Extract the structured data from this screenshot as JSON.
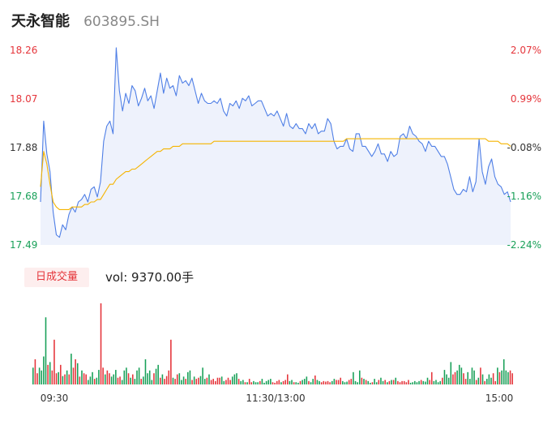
{
  "header": {
    "name": "天永智能",
    "code": "603895.SH"
  },
  "volume_panel": {
    "tab_label": "日成交量",
    "vol_label": "vol: 9370.00手"
  },
  "colors": {
    "up": "#e5353b",
    "down": "#18a058",
    "price_line": "#4f7fe6",
    "avg_line": "#f5b400",
    "area_fill": "#eef2fc",
    "axis_text": "#333333"
  },
  "chart_data": [
    {
      "type": "line",
      "title": "",
      "y_left_ticks": [
        "18.26",
        "18.07",
        "17.88",
        "17.68",
        "17.49"
      ],
      "y_right_ticks": [
        "2.07%",
        "0.99%",
        "-0.08%",
        "-1.16%",
        "-2.24%"
      ],
      "ylim": [
        17.49,
        18.26
      ],
      "x_ticks": [
        "09:30",
        "11:30/13:00",
        "15:00"
      ],
      "series": [
        {
          "values": [
            17.66,
            17.98,
            17.85,
            17.78,
            17.62,
            17.53,
            17.52,
            17.57,
            17.55,
            17.61,
            17.64,
            17.62,
            17.66,
            17.67,
            17.69,
            17.66,
            17.71,
            17.72,
            17.68,
            17.74,
            17.9,
            17.96,
            17.98,
            17.93,
            18.27,
            18.1,
            18.02,
            18.09,
            18.05,
            18.12,
            18.1,
            18.04,
            18.07,
            18.11,
            18.06,
            18.08,
            18.03,
            18.1,
            18.17,
            18.09,
            18.15,
            18.11,
            18.12,
            18.08,
            18.16,
            18.13,
            18.14,
            18.12,
            18.15,
            18.1,
            18.05,
            18.09,
            18.06,
            18.05,
            18.05,
            18.06,
            18.05,
            18.07,
            18.02,
            18.0,
            18.05,
            18.04,
            18.06,
            18.03,
            18.07,
            18.06,
            18.08,
            18.04,
            18.05,
            18.06,
            18.06,
            18.03,
            18.0,
            18.01,
            18.0,
            18.02,
            17.99,
            17.96,
            18.01,
            17.96,
            17.95,
            17.97,
            17.95,
            17.95,
            17.93,
            17.97,
            17.95,
            17.97,
            17.93,
            17.94,
            17.94,
            17.99,
            17.97,
            17.9,
            17.87,
            17.88,
            17.88,
            17.91,
            17.87,
            17.86,
            17.93,
            17.93,
            17.88,
            17.88,
            17.86,
            17.84,
            17.86,
            17.89,
            17.85,
            17.85,
            17.82,
            17.86,
            17.84,
            17.85,
            17.92,
            17.93,
            17.91,
            17.96,
            17.93,
            17.92,
            17.9,
            17.89,
            17.86,
            17.9,
            17.88,
            17.88,
            17.86,
            17.84,
            17.84,
            17.81,
            17.76,
            17.71,
            17.69,
            17.69,
            17.71,
            17.7,
            17.76,
            17.7,
            17.74,
            17.91,
            17.78,
            17.73,
            17.8,
            17.83,
            17.76,
            17.73,
            17.72,
            17.69,
            17.7,
            17.66
          ],
          "color": "#4f7fe6"
        },
        {
          "values": [
            17.72,
            17.86,
            17.81,
            17.73,
            17.66,
            17.64,
            17.63,
            17.63,
            17.63,
            17.63,
            17.64,
            17.64,
            17.64,
            17.64,
            17.65,
            17.65,
            17.66,
            17.66,
            17.67,
            17.67,
            17.69,
            17.71,
            17.73,
            17.73,
            17.75,
            17.76,
            17.77,
            17.78,
            17.78,
            17.79,
            17.79,
            17.8,
            17.81,
            17.82,
            17.83,
            17.84,
            17.85,
            17.86,
            17.86,
            17.87,
            17.87,
            17.87,
            17.88,
            17.88,
            17.88,
            17.89,
            17.89,
            17.89,
            17.89,
            17.89,
            17.89,
            17.89,
            17.89,
            17.89,
            17.89,
            17.9,
            17.9,
            17.9,
            17.9,
            17.9,
            17.9,
            17.9,
            17.9,
            17.9,
            17.9,
            17.9,
            17.9,
            17.9,
            17.9,
            17.9,
            17.9,
            17.9,
            17.9,
            17.9,
            17.9,
            17.9,
            17.9,
            17.9,
            17.9,
            17.9,
            17.9,
            17.9,
            17.9,
            17.9,
            17.9,
            17.9,
            17.9,
            17.9,
            17.9,
            17.9,
            17.9,
            17.9,
            17.9,
            17.9,
            17.9,
            17.9,
            17.9,
            17.91,
            17.91,
            17.91,
            17.91,
            17.91,
            17.91,
            17.91,
            17.91,
            17.91,
            17.91,
            17.91,
            17.91,
            17.91,
            17.91,
            17.91,
            17.91,
            17.91,
            17.91,
            17.91,
            17.91,
            17.91,
            17.91,
            17.91,
            17.91,
            17.91,
            17.91,
            17.91,
            17.91,
            17.91,
            17.91,
            17.91,
            17.91,
            17.91,
            17.91,
            17.91,
            17.91,
            17.91,
            17.91,
            17.91,
            17.91,
            17.91,
            17.91,
            17.91,
            17.91,
            17.91,
            17.9,
            17.9,
            17.9,
            17.9,
            17.89,
            17.89,
            17.89,
            17.88
          ],
          "color": "#f5b400"
        }
      ]
    },
    {
      "type": "bar",
      "values": [
        30,
        45,
        20,
        30,
        25,
        50,
        120,
        35,
        40,
        25,
        80,
        20,
        22,
        35,
        15,
        18,
        25,
        18,
        55,
        30,
        45,
        38,
        14,
        25,
        20,
        18,
        8,
        14,
        22,
        10,
        12,
        26,
        145,
        30,
        18,
        25,
        20,
        14,
        18,
        26,
        12,
        14,
        8,
        25,
        30,
        20,
        12,
        18,
        10,
        25,
        30,
        10,
        14,
        45,
        20,
        25,
        8,
        20,
        28,
        35,
        12,
        18,
        10,
        15,
        25,
        80,
        12,
        10,
        18,
        20,
        8,
        14,
        10,
        22,
        25,
        8,
        14,
        10,
        12,
        15,
        30,
        10,
        12,
        18,
        8,
        10,
        6,
        12,
        12,
        14,
        6,
        8,
        12,
        8,
        14,
        18,
        20,
        10,
        6,
        8,
        4,
        4,
        10,
        4,
        6,
        4,
        4,
        6,
        10,
        3,
        6,
        8,
        10,
        4,
        3,
        6,
        8,
        4,
        6,
        8,
        18,
        6,
        8,
        4,
        4,
        3,
        6,
        8,
        10,
        14,
        6,
        4,
        10,
        16,
        8,
        6,
        4,
        6,
        5,
        6,
        4,
        6,
        10,
        8,
        8,
        12,
        6,
        4,
        5,
        8,
        10,
        22,
        6,
        4,
        25,
        12,
        10,
        8,
        6,
        3,
        4,
        10,
        4,
        8,
        12,
        6,
        8,
        4,
        6,
        8,
        8,
        12,
        6,
        4,
        6,
        6,
        4,
        8,
        3,
        4,
        6,
        4,
        6,
        8,
        6,
        5,
        12,
        8,
        22,
        6,
        8,
        4,
        6,
        12,
        26,
        18,
        12,
        40,
        18,
        22,
        25,
        35,
        30,
        20,
        10,
        22,
        10,
        30,
        25,
        8,
        12,
        30,
        18,
        6,
        10,
        18,
        12,
        20,
        6,
        30,
        22,
        25,
        45,
        25,
        22,
        25,
        20
      ],
      "up": [
        0,
        1,
        1,
        0,
        0,
        0,
        0,
        1,
        0,
        1,
        1,
        1,
        0,
        1,
        0,
        1,
        0,
        1,
        0,
        1,
        1,
        0,
        1,
        0,
        1,
        1,
        0,
        0,
        0,
        1,
        0,
        0,
        1,
        1,
        0,
        1,
        1,
        0,
        0,
        0,
        1,
        1,
        0,
        0,
        0,
        1,
        0,
        1,
        0,
        0,
        0,
        1,
        0,
        0,
        0,
        0,
        0,
        1,
        0,
        0,
        1,
        0,
        1,
        1,
        1,
        1,
        0,
        1,
        1,
        0,
        0,
        0,
        1,
        0,
        0,
        1,
        0,
        1,
        1,
        0,
        0,
        0,
        1,
        0,
        1,
        1,
        1,
        1,
        1,
        0,
        0,
        1,
        1,
        1,
        0,
        0,
        0,
        1,
        0,
        0,
        1,
        0,
        1,
        1,
        0,
        0,
        0,
        1,
        0,
        0,
        0,
        0,
        0,
        1,
        1,
        1,
        1,
        0,
        1,
        1,
        1,
        0,
        0,
        1,
        0,
        0,
        1,
        0,
        0,
        0,
        1,
        0,
        0,
        1,
        0,
        0,
        1,
        1,
        1,
        1,
        1,
        0,
        0,
        1,
        1,
        1,
        0,
        0,
        0,
        1,
        1,
        0,
        0,
        0,
        0,
        1,
        0,
        1,
        0,
        0,
        1,
        0,
        0,
        1,
        0,
        0,
        1,
        0,
        1,
        0,
        1,
        0,
        1,
        1,
        1,
        1,
        1,
        1,
        0,
        0,
        0,
        0,
        0,
        1,
        0,
        0,
        0,
        1,
        1,
        0,
        0,
        0,
        0,
        1,
        0,
        0,
        0,
        0,
        1,
        1,
        0,
        0,
        0,
        1,
        1,
        0,
        0,
        0,
        0,
        1,
        0,
        1,
        0,
        1,
        0,
        0,
        0,
        1,
        1,
        0,
        1,
        0,
        0,
        0,
        0,
        1,
        1
      ],
      "x_ticks": [
        "09:30",
        "11:30/13:00",
        "15:00"
      ]
    }
  ]
}
